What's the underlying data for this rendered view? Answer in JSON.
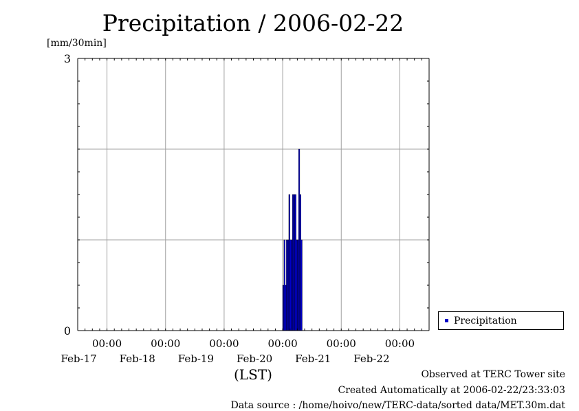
{
  "colors": {
    "bar": "#0000c8",
    "grid": "#a0a0a0",
    "axis": "#000000"
  },
  "chart_data": {
    "type": "bar",
    "title": "Precipitation / 2006-02-22",
    "ylabel": "[mm/30min]",
    "xlabel": "(LST)",
    "ylim": [
      0,
      3
    ],
    "y_ticks": [
      "0",
      "3"
    ],
    "x_ticks": [
      {
        "time": "00:00",
        "date": "Feb-17"
      },
      {
        "time": "00:00",
        "date": "Feb-18"
      },
      {
        "time": "00:00",
        "date": "Feb-19"
      },
      {
        "time": "00:00",
        "date": "Feb-20"
      },
      {
        "time": "00:00",
        "date": "Feb-21"
      },
      {
        "time": "00:00",
        "date": "Feb-22"
      }
    ],
    "x_range": [
      "2006-02-16 12:00",
      "2006-02-22 12:00"
    ],
    "grid": true,
    "legend_position": "right-bottom",
    "series": [
      {
        "name": "Precipitation",
        "points": [
          {
            "t": "2006-02-20 00:30",
            "v": 0.5
          },
          {
            "t": "2006-02-20 01:00",
            "v": 1.0
          },
          {
            "t": "2006-02-20 01:30",
            "v": 0.5
          },
          {
            "t": "2006-02-20 02:00",
            "v": 1.0
          },
          {
            "t": "2006-02-20 02:30",
            "v": 1.0
          },
          {
            "t": "2006-02-20 03:00",
            "v": 1.5
          },
          {
            "t": "2006-02-20 03:30",
            "v": 1.0
          },
          {
            "t": "2006-02-20 04:00",
            "v": 1.0
          },
          {
            "t": "2006-02-20 04:30",
            "v": 1.5
          },
          {
            "t": "2006-02-20 05:00",
            "v": 1.5
          },
          {
            "t": "2006-02-20 05:30",
            "v": 1.5
          },
          {
            "t": "2006-02-20 06:00",
            "v": 1.0
          },
          {
            "t": "2006-02-20 06:30",
            "v": 1.0
          },
          {
            "t": "2006-02-20 07:00",
            "v": 2.0
          },
          {
            "t": "2006-02-20 07:30",
            "v": 1.5
          },
          {
            "t": "2006-02-20 08:00",
            "v": 1.0
          }
        ]
      }
    ]
  },
  "footer": {
    "observed": "Observed at TERC Tower site",
    "created": "Created Automatically at 2006-02-22/23:33:03",
    "source": "Data source : /home/hoivo/new/TERC-data/sorted  data/MET.30m.dat"
  }
}
